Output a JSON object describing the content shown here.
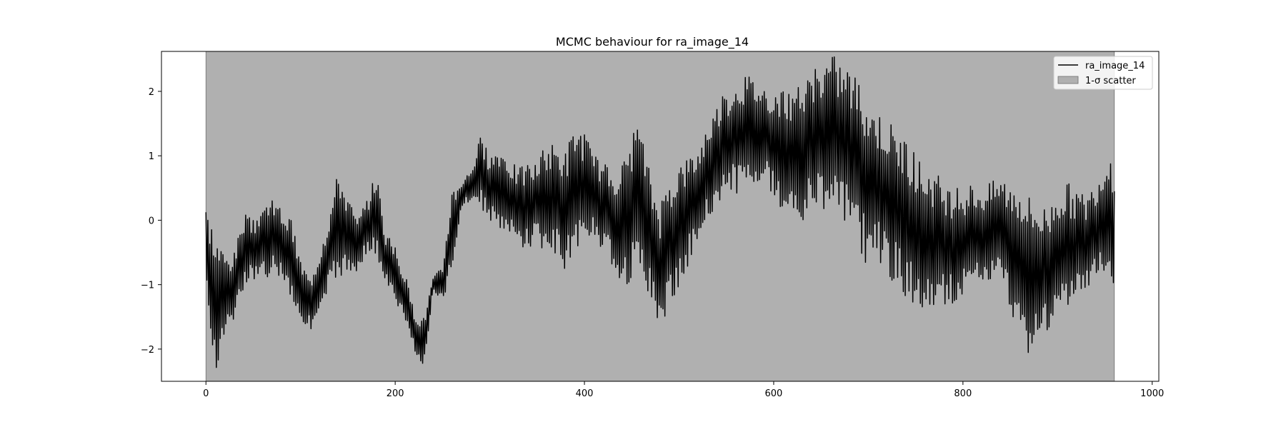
{
  "chart_data": {
    "type": "line",
    "title": "MCMC behaviour for ra_image_14",
    "xlabel": "",
    "ylabel": "",
    "xlim": [
      -47,
      1007
    ],
    "ylim": [
      -2.5,
      2.62
    ],
    "x_ticks": [
      0,
      200,
      400,
      600,
      800,
      1000
    ],
    "y_ticks": [
      -2,
      -1,
      0,
      1,
      2
    ],
    "x_tick_labels": [
      "0",
      "200",
      "400",
      "600",
      "800",
      "1000"
    ],
    "y_tick_labels": [
      "−2",
      "−1",
      "0",
      "1",
      "2"
    ],
    "grid": false,
    "legend_position": "top-right",
    "band": {
      "name": "1-σ scatter",
      "x_start": 0,
      "x_end": 960,
      "lower": -2.5,
      "upper": 2.62,
      "color": "#b0b0b0"
    },
    "series": [
      {
        "name": "ra_image_14",
        "color": "#000000",
        "x_start": 0,
        "x_end": 960,
        "n_points": 961,
        "envelope_x": [
          0,
          10,
          20,
          30,
          40,
          50,
          60,
          70,
          80,
          90,
          100,
          110,
          120,
          130,
          140,
          150,
          160,
          170,
          180,
          190,
          200,
          210,
          220,
          230,
          240,
          250,
          260,
          270,
          280,
          290,
          300,
          310,
          320,
          330,
          340,
          350,
          360,
          370,
          380,
          390,
          400,
          410,
          420,
          430,
          440,
          450,
          460,
          470,
          480,
          490,
          500,
          510,
          520,
          530,
          540,
          550,
          560,
          570,
          580,
          590,
          600,
          610,
          620,
          630,
          640,
          650,
          660,
          670,
          680,
          690,
          700,
          710,
          720,
          730,
          740,
          750,
          760,
          770,
          780,
          790,
          800,
          810,
          820,
          830,
          840,
          850,
          860,
          870,
          880,
          890,
          900,
          910,
          920,
          930,
          940,
          950,
          960
        ],
        "envelope_low": [
          -1.0,
          -2.4,
          -1.9,
          -1.5,
          -1.1,
          -0.9,
          -1.0,
          -0.8,
          -0.9,
          -1.2,
          -1.6,
          -1.7,
          -1.6,
          -1.1,
          -0.9,
          -0.9,
          -0.8,
          -0.5,
          -0.6,
          -1.0,
          -1.3,
          -1.6,
          -2.0,
          -2.4,
          -1.1,
          -1.3,
          -0.8,
          0.2,
          0.3,
          0.2,
          0.0,
          -0.2,
          -0.3,
          -0.4,
          -0.5,
          -0.3,
          -0.6,
          -0.6,
          -0.8,
          -0.5,
          -0.4,
          -0.2,
          -0.5,
          -0.7,
          -1.0,
          -1.0,
          -0.8,
          -1.3,
          -1.7,
          -1.4,
          -1.0,
          -0.7,
          -0.3,
          0.0,
          0.2,
          0.4,
          0.4,
          0.4,
          0.6,
          0.6,
          0.3,
          0.0,
          0.2,
          -0.1,
          0.2,
          0.1,
          0.3,
          0.0,
          -0.2,
          -0.4,
          -0.8,
          -0.6,
          -0.9,
          -1.0,
          -1.2,
          -1.4,
          -1.6,
          -1.4,
          -1.3,
          -1.3,
          -1.2,
          -1.1,
          -1.0,
          -1.0,
          -1.0,
          -1.4,
          -1.8,
          -2.1,
          -2.0,
          -1.7,
          -1.4,
          -1.5,
          -1.3,
          -1.2,
          -0.8,
          -1.0,
          -1.1
        ],
        "envelope_high": [
          0.2,
          -0.2,
          -0.5,
          -0.5,
          0.1,
          0.0,
          0.3,
          0.3,
          0.2,
          0.0,
          -0.6,
          -0.9,
          -0.4,
          0.1,
          0.8,
          0.4,
          0.0,
          0.3,
          0.8,
          -0.2,
          -0.4,
          -0.8,
          -1.4,
          -1.5,
          -0.9,
          -0.7,
          0.5,
          0.6,
          0.8,
          1.3,
          1.0,
          1.2,
          1.0,
          0.8,
          0.9,
          0.9,
          1.2,
          1.2,
          1.1,
          1.5,
          1.4,
          1.0,
          0.9,
          0.8,
          0.9,
          1.4,
          1.4,
          0.7,
          0.2,
          0.7,
          0.9,
          1.0,
          1.1,
          1.5,
          1.8,
          2.0,
          2.2,
          2.3,
          2.2,
          2.1,
          2.1,
          2.0,
          2.0,
          2.1,
          2.3,
          2.4,
          2.6,
          2.5,
          2.4,
          2.2,
          1.9,
          1.7,
          1.6,
          1.4,
          1.3,
          1.0,
          0.9,
          0.8,
          0.6,
          0.5,
          0.5,
          0.6,
          0.5,
          0.6,
          0.7,
          0.6,
          0.6,
          0.4,
          0.3,
          0.2,
          0.5,
          0.6,
          0.5,
          0.4,
          0.6,
          1.0,
          0.8
        ]
      }
    ]
  }
}
